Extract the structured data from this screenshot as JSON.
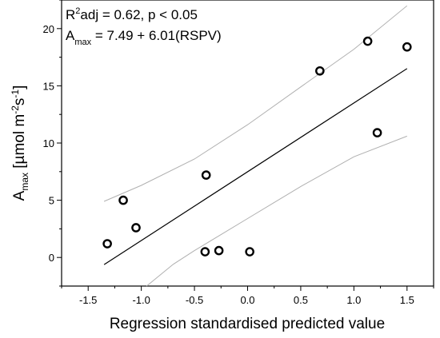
{
  "chart_data": {
    "type": "scatter",
    "xlabel": "Regression standardised predicted value",
    "ylabel": {
      "main": "A",
      "sub": "max",
      "rest": " [µmol m",
      "sup1": "-2",
      "mid": "s",
      "sup2": "-1",
      "end": "]"
    },
    "xlim": [
      -1.75,
      1.75
    ],
    "ylim": [
      -2.5,
      22.5
    ],
    "xticks": [
      -1.5,
      -1.0,
      -0.5,
      0.0,
      0.5,
      1.0,
      1.5
    ],
    "xtick_labels": [
      "-1.5",
      "-1.0",
      "-0.5",
      "0.0",
      "0.5",
      "1.0",
      "1.5"
    ],
    "yticks": [
      0,
      5,
      10,
      15,
      20
    ],
    "ytick_labels": [
      "0",
      "5",
      "10",
      "15",
      "20"
    ],
    "annotation_1": {
      "pre": "R",
      "sup": "2",
      "post": "adj = 0.62, p < 0.05"
    },
    "annotation_2": {
      "pre": "A",
      "sub": "max",
      "post": " = 7.49 + 6.01(RSPV)"
    },
    "points": [
      {
        "x": -1.32,
        "y": 1.2
      },
      {
        "x": -1.17,
        "y": 5.0
      },
      {
        "x": -1.05,
        "y": 2.6
      },
      {
        "x": -0.39,
        "y": 7.2
      },
      {
        "x": -0.4,
        "y": 0.5
      },
      {
        "x": -0.27,
        "y": 0.6
      },
      {
        "x": 0.02,
        "y": 0.5
      },
      {
        "x": 0.68,
        "y": 16.3
      },
      {
        "x": 1.13,
        "y": 18.9
      },
      {
        "x": 1.22,
        "y": 10.9
      },
      {
        "x": 1.5,
        "y": 18.4
      }
    ],
    "fit": {
      "intercept": 7.49,
      "slope": 6.01,
      "x_range": [
        -1.35,
        1.5
      ]
    },
    "confidence_band": {
      "upper": [
        [
          -1.35,
          4.9
        ],
        [
          -1.0,
          6.3
        ],
        [
          -0.5,
          8.6
        ],
        [
          0.0,
          11.6
        ],
        [
          0.5,
          14.9
        ],
        [
          1.0,
          18.2
        ],
        [
          1.5,
          22.0
        ]
      ],
      "lower": [
        [
          -0.95,
          -2.5
        ],
        [
          -0.7,
          -0.6
        ],
        [
          -0.5,
          0.6
        ],
        [
          0.0,
          3.4
        ],
        [
          0.5,
          6.2
        ],
        [
          1.0,
          8.8
        ],
        [
          1.5,
          10.6
        ]
      ]
    },
    "grid": false,
    "legend": "none"
  }
}
